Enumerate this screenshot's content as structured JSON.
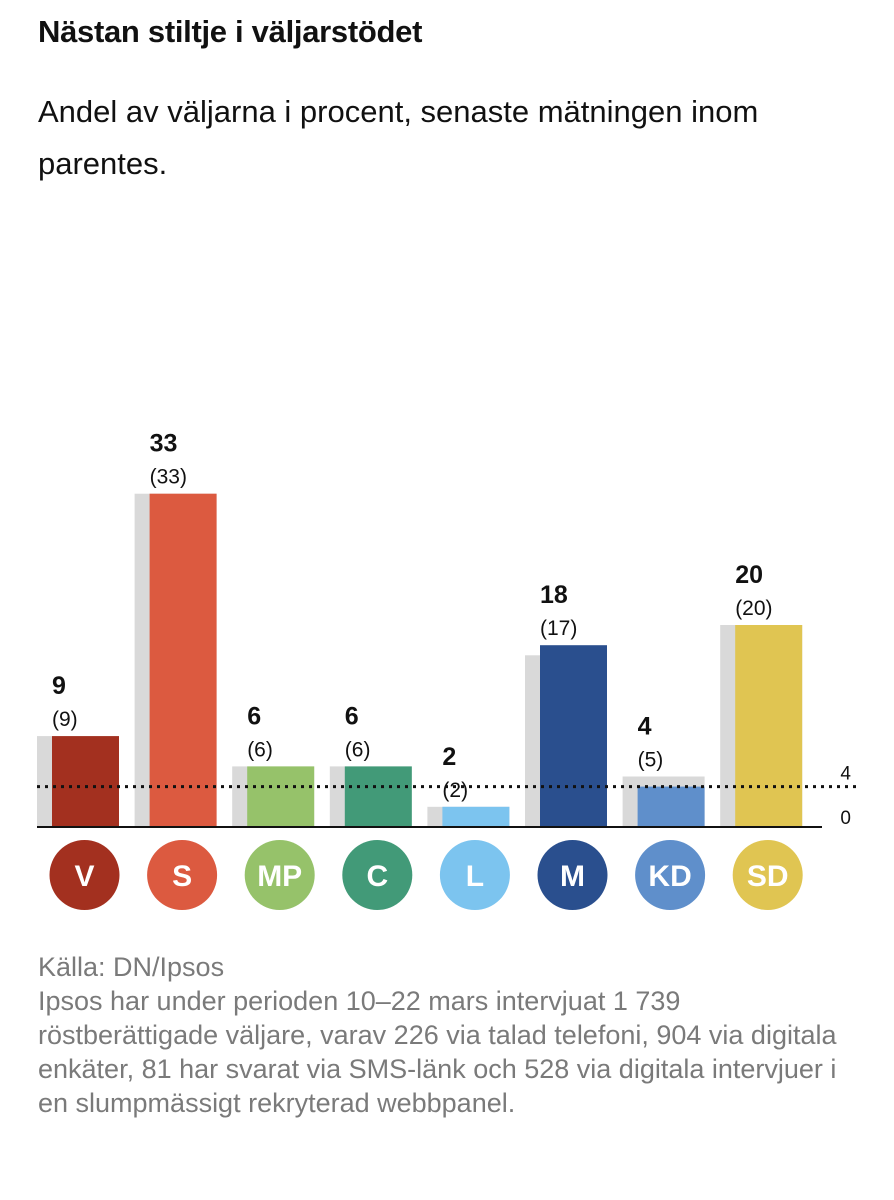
{
  "header": {
    "title": "Nästan stiltje i väljarstödet",
    "subtitle": "Andel av väljarna i procent, senaste mätningen inom parentes."
  },
  "chart_data": {
    "type": "bar",
    "categories": [
      "V",
      "S",
      "MP",
      "C",
      "L",
      "M",
      "KD",
      "SD"
    ],
    "series": [
      {
        "values": [
          9,
          33,
          6,
          6,
          2,
          18,
          4,
          20
        ]
      },
      {
        "values": [
          9,
          33,
          6,
          6,
          2,
          17,
          5,
          20
        ]
      }
    ],
    "value_labels": [
      "9",
      "33",
      "6",
      "6",
      "2",
      "18",
      "4",
      "20"
    ],
    "previous_labels": [
      "(9)",
      "(33)",
      "(6)",
      "(6)",
      "(2)",
      "(17)",
      "(5)",
      "(20)"
    ],
    "colors": [
      "#a3301f",
      "#dc5a40",
      "#96c26a",
      "#429a78",
      "#7cc4ef",
      "#2a4f8e",
      "#5f8fcb",
      "#e0c552"
    ],
    "previous_color": "#d9d9d9",
    "threshold": 4,
    "threshold_label": "4",
    "zero_label": "0",
    "ylim": [
      0,
      33
    ],
    "grid": false,
    "legend": "none"
  },
  "footer": {
    "source": "Källa: DN/Ipsos",
    "note": "Ipsos har under perioden 10–22 mars intervjuat 1 739 röstberättigade väljare, varav 226 via talad telefoni, 904 via digitala enkäter, 81 har svarat via SMS-länk och 528 via digitala intervjuer i en slumpmässigt rekryterad webbpanel."
  }
}
